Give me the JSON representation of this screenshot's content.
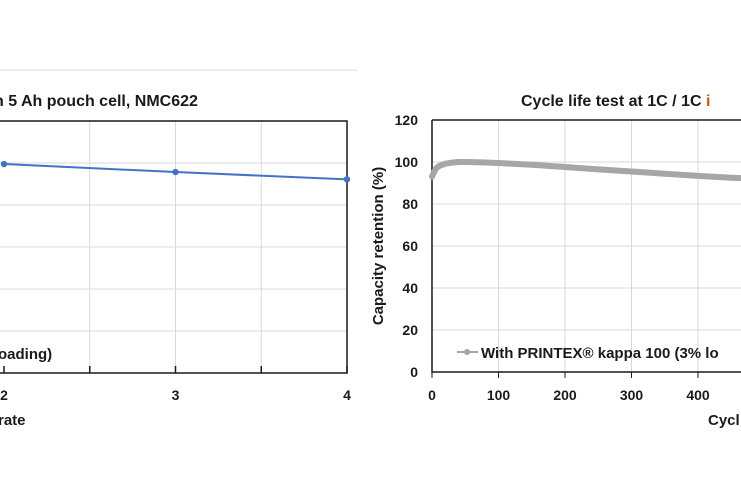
{
  "chart_data": [
    {
      "type": "line",
      "title": "n 5 Ah pouch cell, NMC622",
      "xlabel": "rate",
      "x_tick_labels": [
        "2",
        "3",
        "4"
      ],
      "xlim": [
        2,
        4
      ],
      "ylim": [
        0,
        120
      ],
      "grid": true,
      "legend_fragment": "oading)",
      "legend_placement": "bottom-left",
      "series": [
        {
          "color": "#4472c4",
          "x": [
            2,
            3,
            4
          ],
          "y": [
            99.5,
            95.7,
            92.2
          ]
        }
      ]
    },
    {
      "type": "line",
      "title": "Cycle life test at 1C / 1C ",
      "title_highlight": "i",
      "title_highlight_color": "#c55a11",
      "xlabel": "Cycl",
      "ylabel": "Capacity retention (%)",
      "x_tick_labels": [
        "0",
        "100",
        "200",
        "300",
        "400"
      ],
      "y_tick_labels": [
        "0",
        "20",
        "40",
        "60",
        "80",
        "100",
        "120"
      ],
      "xlim": [
        0,
        465
      ],
      "ylim": [
        0,
        120
      ],
      "grid": true,
      "legend_placement": "bottom-left",
      "series": [
        {
          "name": "With PRINTEX® kappa 100 (3% lo",
          "color": "#a6a6a6",
          "x": [
            0,
            5,
            10,
            20,
            30,
            40,
            50,
            75,
            100,
            150,
            200,
            250,
            300,
            350,
            400,
            450,
            465
          ],
          "y": [
            93,
            96.5,
            98,
            99.2,
            99.7,
            100,
            100,
            99.8,
            99.5,
            98.7,
            97.6,
            96.5,
            95.5,
            94.4,
            93.4,
            92.5,
            92.3
          ]
        }
      ]
    }
  ]
}
